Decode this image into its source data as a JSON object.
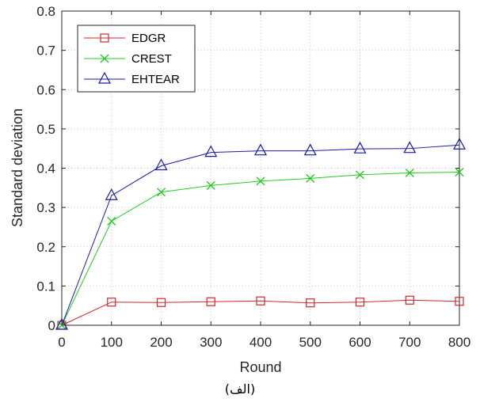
{
  "chart_data": {
    "type": "line",
    "x": [
      0,
      100,
      200,
      300,
      400,
      500,
      600,
      700,
      800
    ],
    "series": [
      {
        "name": "EDGR",
        "color": "#d62728",
        "marker": "square",
        "values": [
          0,
          0.059,
          0.058,
          0.06,
          0.062,
          0.057,
          0.059,
          0.064,
          0.061
        ]
      },
      {
        "name": "CREST",
        "color": "#22cc22",
        "marker": "x",
        "values": [
          0,
          0.265,
          0.339,
          0.356,
          0.367,
          0.374,
          0.383,
          0.388,
          0.39
        ]
      },
      {
        "name": "EHTEAR",
        "color": "#1a1aaa",
        "marker": "triangle",
        "values": [
          0,
          0.33,
          0.406,
          0.44,
          0.444,
          0.444,
          0.449,
          0.45,
          0.459
        ]
      }
    ],
    "xlabel": "Round",
    "ylabel": "Standard deviation",
    "xlim": [
      0,
      800
    ],
    "ylim": [
      0,
      0.8
    ],
    "xticks": [
      "0",
      "100",
      "200",
      "300",
      "400",
      "500",
      "600",
      "700",
      "800"
    ],
    "yticks": [
      "0",
      "0.1",
      "0.2",
      "0.3",
      "0.4",
      "0.5",
      "0.6",
      "0.7",
      "0.8"
    ],
    "grid": true,
    "legend_position": "top-left"
  },
  "caption": "(الف)"
}
